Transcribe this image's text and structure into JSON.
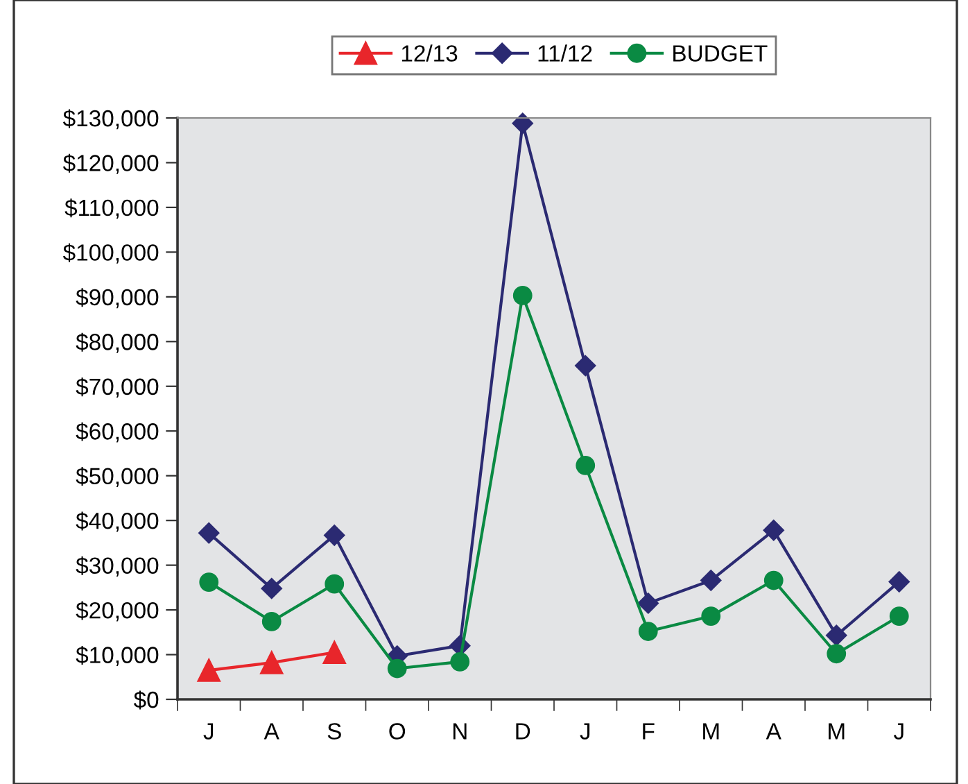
{
  "chart_data": {
    "type": "line",
    "categories": [
      "J",
      "A",
      "S",
      "O",
      "N",
      "D",
      "J",
      "F",
      "M",
      "A",
      "M",
      "J"
    ],
    "series": [
      {
        "name": "12/13",
        "color": "#e8262b",
        "marker": "triangle",
        "values": [
          6500,
          8200,
          10500,
          null,
          null,
          null,
          null,
          null,
          null,
          null,
          null,
          null
        ]
      },
      {
        "name": "11/12",
        "color": "#2b2a72",
        "marker": "diamond",
        "values": [
          37200,
          24800,
          36700,
          9700,
          12000,
          128800,
          74600,
          21500,
          26600,
          37800,
          14300,
          26300
        ]
      },
      {
        "name": "BUDGET",
        "color": "#0a8a43",
        "marker": "circle",
        "values": [
          26200,
          17400,
          25800,
          6900,
          8400,
          90300,
          52300,
          15200,
          18600,
          26600,
          10200,
          18600
        ]
      }
    ],
    "ylim": [
      0,
      130000
    ],
    "yticks": [
      {
        "value": 0,
        "label": "$0"
      },
      {
        "value": 10000,
        "label": "$10,000"
      },
      {
        "value": 20000,
        "label": "$20,000"
      },
      {
        "value": 30000,
        "label": "$30,000"
      },
      {
        "value": 40000,
        "label": "$40,000"
      },
      {
        "value": 50000,
        "label": "$50,000"
      },
      {
        "value": 60000,
        "label": "$60,000"
      },
      {
        "value": 70000,
        "label": "$70,000"
      },
      {
        "value": 80000,
        "label": "$80,000"
      },
      {
        "value": 90000,
        "label": "$90,000"
      },
      {
        "value": 100000,
        "label": "$100,000"
      },
      {
        "value": 110000,
        "label": "$110,000"
      },
      {
        "value": 120000,
        "label": "$120,000"
      },
      {
        "value": 130000,
        "label": "$130,000"
      }
    ],
    "grid": false,
    "legend": "top",
    "line_style": "solid"
  }
}
